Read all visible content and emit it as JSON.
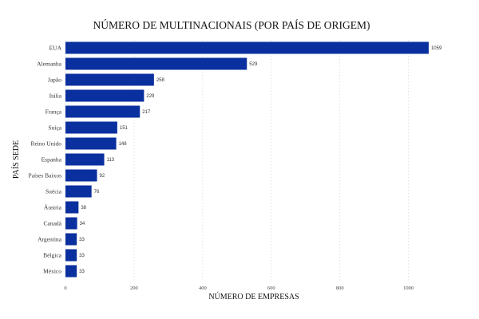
{
  "chart_data": {
    "type": "bar",
    "orientation": "horizontal",
    "title": "NÚMERO DE MULTINACIONAIS (POR PAÍS DE ORIGEM)",
    "xlabel": "NÚMERO DE EMPRESAS",
    "ylabel": "PAÍS SEDE",
    "categories": [
      "EUA",
      "Alemanha",
      "Japão",
      "Itália",
      "França",
      "Suíça",
      "Reino Unido",
      "Espanha",
      "Países Baixos",
      "Suécia",
      "Áustria",
      "Canadá",
      "Argentina",
      "Bélgica",
      "México"
    ],
    "values": [
      1059,
      529,
      258,
      229,
      217,
      151,
      148,
      113,
      92,
      76,
      38,
      34,
      33,
      33,
      33
    ],
    "x_ticks": [
      0,
      200,
      400,
      600,
      800,
      1000
    ],
    "xlim": [
      0,
      1080
    ],
    "grid": "vertical",
    "bar_color": "#0a2f9e"
  }
}
